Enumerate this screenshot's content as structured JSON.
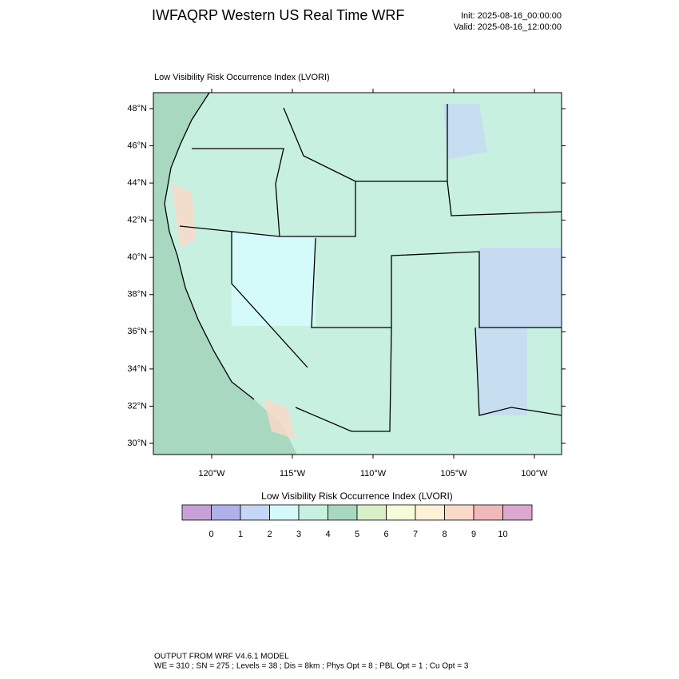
{
  "header": {
    "title": "IWFAQRP Western US Real Time WRF",
    "init": "Init: 2025-08-16_00:00:00",
    "valid": "Valid: 2025-08-16_12:00:00"
  },
  "map": {
    "subtitle": "Low Visibility Risk Occurrence Index   (LVORI)",
    "lat_ticks": [
      {
        "value": 48,
        "label": "48°N"
      },
      {
        "value": 46,
        "label": "46°N"
      },
      {
        "value": 44,
        "label": "44°N"
      },
      {
        "value": 42,
        "label": "42°N"
      },
      {
        "value": 40,
        "label": "40°N"
      },
      {
        "value": 38,
        "label": "38°N"
      },
      {
        "value": 36,
        "label": "36°N"
      },
      {
        "value": 34,
        "label": "34°N"
      },
      {
        "value": 32,
        "label": "32°N"
      },
      {
        "value": 30,
        "label": "30°N"
      }
    ],
    "lon_ticks": [
      {
        "value": -120,
        "label": "120°W"
      },
      {
        "value": -115,
        "label": "115°W"
      },
      {
        "value": -110,
        "label": "110°W"
      },
      {
        "value": -105,
        "label": "105°W"
      },
      {
        "value": -100,
        "label": "100°W"
      }
    ]
  },
  "colorbar": {
    "title": "Low Visibility Risk Occurrence Index  (LVORI)",
    "levels": [
      0,
      1,
      2,
      3,
      4,
      5,
      6,
      7,
      8,
      9,
      10
    ],
    "colors": [
      "#c8a0d8",
      "#b0b0ea",
      "#c6d6f6",
      "#d4fafa",
      "#c8f0e0",
      "#a8d8c0",
      "#d8f0c8",
      "#f4fcd8",
      "#fdf2d8",
      "#fcd8c8",
      "#f0b8b8",
      "#dca8d0"
    ]
  },
  "footer": {
    "line1": "OUTPUT FROM WRF V4.6.1 MODEL",
    "line2": "WE = 310 ; SN = 275 ; Levels = 38 ; Dis = 8km ; Phys Opt = 8 ; PBL Opt = 1 ; Cu Opt = 3"
  }
}
